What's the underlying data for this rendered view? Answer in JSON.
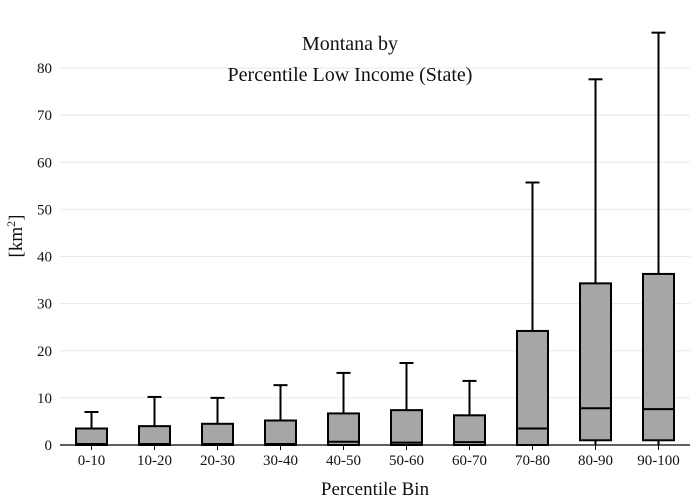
{
  "chart_data": {
    "type": "box",
    "title_line1": "Montana  by",
    "title_line2": "Percentile Low Income (State)",
    "xlabel": "Percentile Bin",
    "ylabel": "[km",
    "ylabel_sup": "2",
    "ylabel_close": "]",
    "ylim": [
      0,
      90
    ],
    "yticks": [
      0,
      10,
      20,
      30,
      40,
      50,
      60,
      70,
      80
    ],
    "grid": true,
    "colors": {
      "box_fill": "#a6a6a6",
      "stroke": "#000000",
      "grid": "#e8e8e8"
    },
    "categories": [
      "0-10",
      "10-20",
      "20-30",
      "30-40",
      "40-50",
      "50-60",
      "60-70",
      "70-80",
      "80-90",
      "90-100"
    ],
    "boxes": [
      {
        "min": 0,
        "q1": 0,
        "median": 0.2,
        "q3": 3.5,
        "max": 7.0
      },
      {
        "min": 0,
        "q1": 0,
        "median": 0.2,
        "q3": 4.0,
        "max": 10.2
      },
      {
        "min": 0,
        "q1": 0,
        "median": 0.2,
        "q3": 4.5,
        "max": 10.0
      },
      {
        "min": 0,
        "q1": 0,
        "median": 0.2,
        "q3": 5.2,
        "max": 12.7
      },
      {
        "min": 0,
        "q1": 0,
        "median": 0.7,
        "q3": 6.7,
        "max": 15.3
      },
      {
        "min": 0,
        "q1": 0,
        "median": 0.5,
        "q3": 7.4,
        "max": 17.4
      },
      {
        "min": 0,
        "q1": 0,
        "median": 0.6,
        "q3": 6.3,
        "max": 13.6
      },
      {
        "min": 0,
        "q1": 0,
        "median": 3.5,
        "q3": 24.2,
        "max": 55.7
      },
      {
        "min": 0,
        "q1": 1.0,
        "median": 7.8,
        "q3": 34.3,
        "max": 77.6
      },
      {
        "min": 0,
        "q1": 1.0,
        "median": 7.6,
        "q3": 36.3,
        "max": 87.5
      }
    ]
  }
}
